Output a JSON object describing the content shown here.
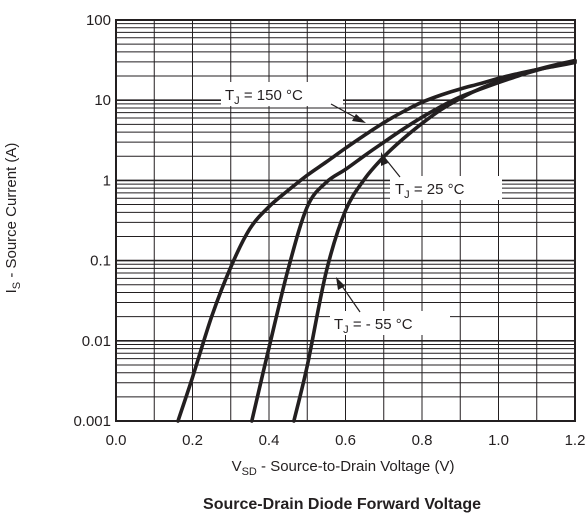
{
  "chart_data": {
    "type": "line",
    "title": "Source-Drain Diode Forward Voltage",
    "xlabel": {
      "main": "V",
      "sub": "SD",
      "rest": " - Source-to-Drain Voltage (V)"
    },
    "ylabel": {
      "main": "I",
      "sub": "S",
      "rest": " - Source Current (A)"
    },
    "xlim": [
      0.0,
      1.2
    ],
    "ylim": [
      0.001,
      100
    ],
    "y_scale": "log",
    "grid": true,
    "x_tick_labels": [
      "0.0",
      "0.2",
      "0.4",
      "0.6",
      "0.8",
      "1.0",
      "1.2"
    ],
    "y_tick_labels": [
      "0.001",
      "0.01",
      "0.1",
      "1",
      "10",
      "100"
    ],
    "series": [
      {
        "name": {
          "main": "T",
          "sub": "J",
          "rest": " = 150 °C"
        },
        "x": [
          0.162,
          0.2,
          0.25,
          0.3,
          0.35,
          0.4,
          0.45,
          0.5,
          0.55,
          0.6,
          0.65,
          0.7,
          0.75,
          0.8,
          0.85,
          0.9,
          0.95,
          1.0,
          1.05,
          1.1,
          1.15,
          1.2
        ],
        "y": [
          0.001,
          0.0035,
          0.02,
          0.083,
          0.25,
          0.47,
          0.75,
          1.16,
          1.7,
          2.52,
          3.67,
          5.24,
          7.17,
          9.43,
          11.6,
          13.8,
          16.0,
          18.7,
          21.4,
          24.1,
          26.6,
          29.5
        ]
      },
      {
        "name": {
          "main": "T",
          "sub": "J",
          "rest": " = 25 °C"
        },
        "x": [
          0.355,
          0.4,
          0.45,
          0.5,
          0.55,
          0.6,
          0.65,
          0.7,
          0.75,
          0.8,
          0.85,
          0.9,
          0.95,
          1.0,
          1.05,
          1.1,
          1.15,
          1.2
        ],
        "y": [
          0.001,
          0.0082,
          0.078,
          0.47,
          0.95,
          1.37,
          2.04,
          2.99,
          4.34,
          6.13,
          8.38,
          11.0,
          13.6,
          16.6,
          20.0,
          23.6,
          27.2,
          30.7
        ]
      },
      {
        "name": {
          "main": "T",
          "sub": "J",
          "rest": " = - 55 °C"
        },
        "x": [
          0.465,
          0.5,
          0.55,
          0.6,
          0.65,
          0.7,
          0.75,
          0.8,
          0.85,
          0.9,
          0.95,
          1.0,
          1.05,
          1.1,
          1.15,
          1.2
        ],
        "y": [
          0.001,
          0.0049,
          0.074,
          0.42,
          1.04,
          1.97,
          3.28,
          5.13,
          7.64,
          10.5,
          13.8,
          17.1,
          20.6,
          24.1,
          27.7,
          31.3
        ]
      }
    ]
  }
}
